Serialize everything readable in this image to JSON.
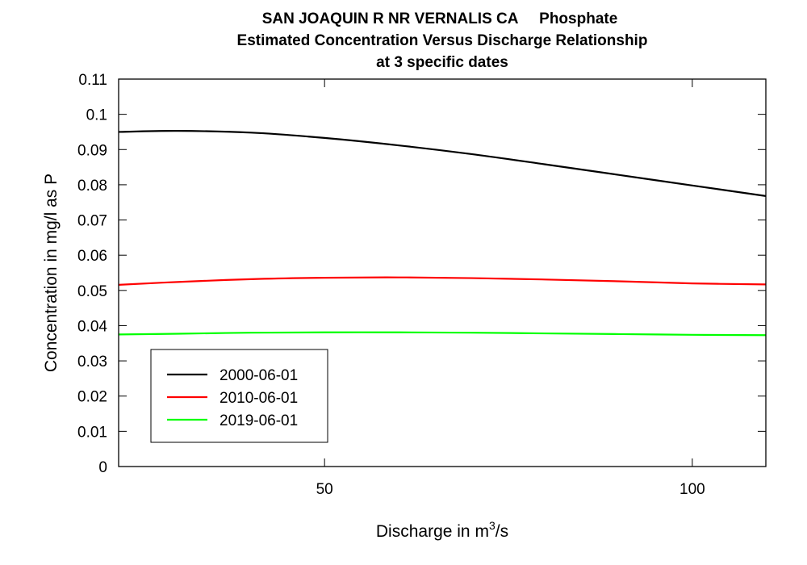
{
  "chart_data": {
    "type": "line",
    "title_lines": [
      "SAN JOAQUIN R NR VERNALIS CA     Phosphate",
      "Estimated Concentration Versus Discharge Relationship",
      "at 3 specific dates"
    ],
    "xlabel_text": "Discharge in m",
    "xlabel_sup": "3",
    "xlabel_tail": "/s",
    "ylabel": "Concentration in mg/l as P",
    "xlim": [
      22,
      110
    ],
    "ylim": [
      0,
      0.11
    ],
    "xticks": [
      50,
      100
    ],
    "yticks": [
      0,
      0.01,
      0.02,
      0.03,
      0.04,
      0.05,
      0.06,
      0.07,
      0.08,
      0.09,
      0.1,
      0.11
    ],
    "ytick_labels": [
      "0",
      "0.01",
      "0.02",
      "0.03",
      "0.04",
      "0.05",
      "0.06",
      "0.07",
      "0.08",
      "0.09",
      "0.1",
      "0.11"
    ],
    "grid": false,
    "legend_position": "bottom-left",
    "series": [
      {
        "name": "2000-06-01",
        "color": "#000000",
        "x": [
          22,
          30,
          40,
          50,
          60,
          70,
          80,
          90,
          100,
          110
        ],
        "y": [
          0.095,
          0.0953,
          0.0948,
          0.0933,
          0.0912,
          0.0887,
          0.0858,
          0.0828,
          0.0798,
          0.0768
        ]
      },
      {
        "name": "2010-06-01",
        "color": "#ff0000",
        "x": [
          22,
          30,
          40,
          50,
          60,
          70,
          80,
          90,
          100,
          110
        ],
        "y": [
          0.0516,
          0.0524,
          0.0532,
          0.0536,
          0.0537,
          0.0535,
          0.0531,
          0.0526,
          0.052,
          0.0517
        ]
      },
      {
        "name": "2019-06-01",
        "color": "#00ff00",
        "x": [
          22,
          30,
          40,
          50,
          60,
          70,
          80,
          90,
          100,
          110
        ],
        "y": [
          0.0375,
          0.0377,
          0.038,
          0.0381,
          0.0381,
          0.038,
          0.0378,
          0.0376,
          0.0374,
          0.0373
        ]
      }
    ]
  }
}
